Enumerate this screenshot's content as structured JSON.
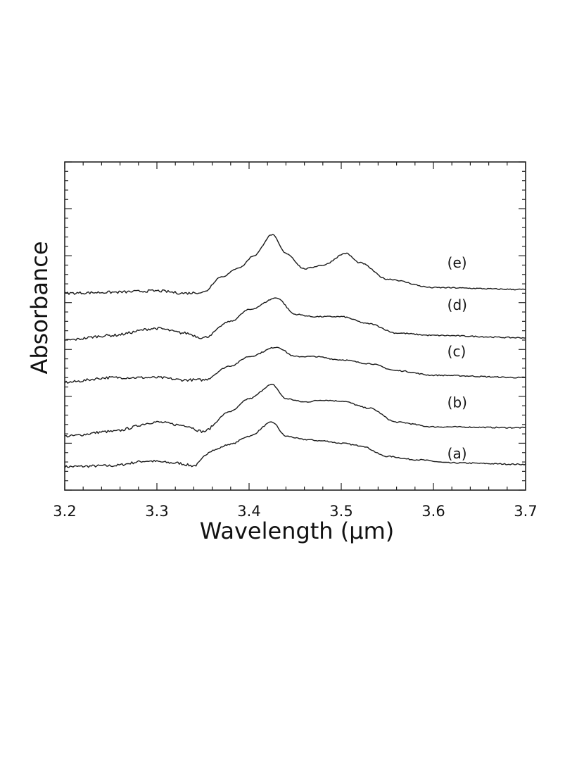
{
  "chart_data": {
    "type": "line",
    "title": "",
    "xlabel": "Wavelength (μm)",
    "ylabel": "Absorbance",
    "xlim": [
      3.2,
      3.7
    ],
    "ylim": [
      0,
      7
    ],
    "x_ticks": [
      "3.2",
      "3.3",
      "3.4",
      "3.5",
      "3.6",
      "3.7"
    ],
    "y_tick_labels_shown": false,
    "grid": false,
    "series": [
      {
        "name": "(a)",
        "points": [
          [
            3.2,
            0.5
          ],
          [
            3.25,
            0.52
          ],
          [
            3.29,
            0.62
          ],
          [
            3.32,
            0.58
          ],
          [
            3.34,
            0.52
          ],
          [
            3.36,
            0.85
          ],
          [
            3.38,
            0.98
          ],
          [
            3.4,
            1.15
          ],
          [
            3.425,
            1.45
          ],
          [
            3.44,
            1.15
          ],
          [
            3.46,
            1.08
          ],
          [
            3.48,
            1.05
          ],
          [
            3.5,
            1.0
          ],
          [
            3.52,
            0.95
          ],
          [
            3.55,
            0.72
          ],
          [
            3.58,
            0.65
          ],
          [
            3.62,
            0.58
          ],
          [
            3.7,
            0.55
          ]
        ]
      },
      {
        "name": "(b)",
        "points": [
          [
            3.2,
            1.15
          ],
          [
            3.25,
            1.25
          ],
          [
            3.3,
            1.45
          ],
          [
            3.33,
            1.38
          ],
          [
            3.35,
            1.25
          ],
          [
            3.38,
            1.68
          ],
          [
            3.4,
            1.95
          ],
          [
            3.425,
            2.25
          ],
          [
            3.44,
            1.95
          ],
          [
            3.46,
            1.88
          ],
          [
            3.48,
            1.92
          ],
          [
            3.5,
            1.9
          ],
          [
            3.53,
            1.75
          ],
          [
            3.56,
            1.45
          ],
          [
            3.6,
            1.35
          ],
          [
            3.7,
            1.33
          ]
        ]
      },
      {
        "name": "(c)",
        "points": [
          [
            3.2,
            2.3
          ],
          [
            3.25,
            2.4
          ],
          [
            3.3,
            2.4
          ],
          [
            3.33,
            2.35
          ],
          [
            3.35,
            2.35
          ],
          [
            3.38,
            2.65
          ],
          [
            3.4,
            2.85
          ],
          [
            3.43,
            3.05
          ],
          [
            3.45,
            2.85
          ],
          [
            3.47,
            2.85
          ],
          [
            3.5,
            2.78
          ],
          [
            3.53,
            2.7
          ],
          [
            3.56,
            2.55
          ],
          [
            3.6,
            2.45
          ],
          [
            3.7,
            2.4
          ]
        ]
      },
      {
        "name": "(d)",
        "points": [
          [
            3.2,
            3.2
          ],
          [
            3.25,
            3.3
          ],
          [
            3.3,
            3.45
          ],
          [
            3.33,
            3.35
          ],
          [
            3.35,
            3.25
          ],
          [
            3.38,
            3.6
          ],
          [
            3.4,
            3.85
          ],
          [
            3.43,
            4.1
          ],
          [
            3.45,
            3.75
          ],
          [
            3.47,
            3.7
          ],
          [
            3.5,
            3.7
          ],
          [
            3.53,
            3.55
          ],
          [
            3.56,
            3.35
          ],
          [
            3.6,
            3.3
          ],
          [
            3.7,
            3.25
          ]
        ]
      },
      {
        "name": "(e)",
        "points": [
          [
            3.2,
            4.2
          ],
          [
            3.25,
            4.22
          ],
          [
            3.3,
            4.25
          ],
          [
            3.33,
            4.2
          ],
          [
            3.35,
            4.22
          ],
          [
            3.37,
            4.55
          ],
          [
            3.39,
            4.75
          ],
          [
            3.405,
            5.0
          ],
          [
            3.425,
            5.45
          ],
          [
            3.44,
            5.05
          ],
          [
            3.46,
            4.72
          ],
          [
            3.48,
            4.8
          ],
          [
            3.505,
            5.05
          ],
          [
            3.52,
            4.85
          ],
          [
            3.55,
            4.5
          ],
          [
            3.6,
            4.32
          ],
          [
            3.7,
            4.28
          ]
        ]
      }
    ],
    "label_positions": [
      {
        "name": "(a)",
        "x": 3.615,
        "y": 0.78
      },
      {
        "name": "(b)",
        "x": 3.615,
        "y": 1.87
      },
      {
        "name": "(c)",
        "x": 3.615,
        "y": 2.96
      },
      {
        "name": "(d)",
        "x": 3.615,
        "y": 3.95
      },
      {
        "name": "(e)",
        "x": 3.615,
        "y": 4.85
      }
    ]
  }
}
